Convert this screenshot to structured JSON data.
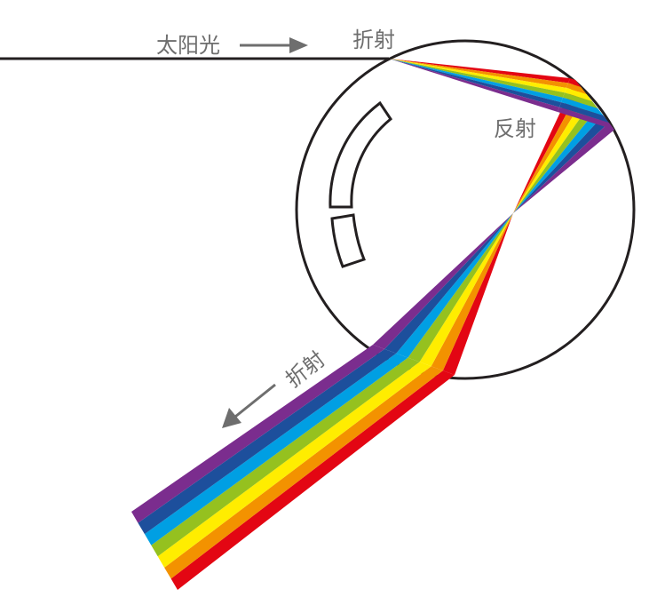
{
  "labels": {
    "sunlight": "太阳光",
    "refraction_in": "折射",
    "reflection": "反射",
    "refraction_out": "折射"
  },
  "spectrum_colors": [
    "#e30613",
    "#f39200",
    "#ffed00",
    "#95c11f",
    "#009fe3",
    "#1d4f9c",
    "#7b2d8e"
  ],
  "line_color": "#231f20",
  "label_color": "#6e6e6e"
}
